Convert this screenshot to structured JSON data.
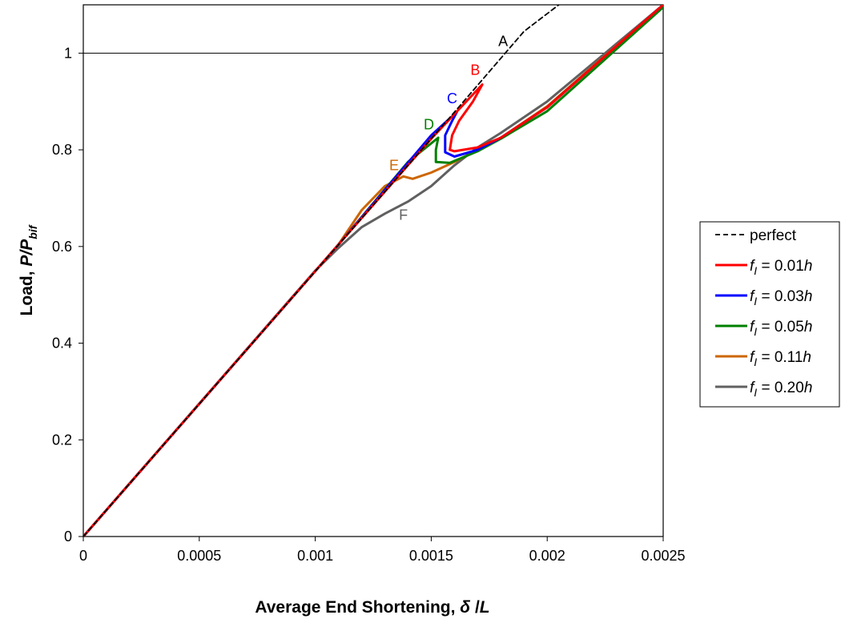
{
  "chart_data": {
    "type": "line",
    "xlabel": {
      "prefix": "Average End Shortening, ",
      "delta": "δ",
      "slash": " /",
      "L": "L"
    },
    "ylabel": {
      "prefix": "Load, ",
      "P": "P",
      "slash": "/",
      "P2": "P",
      "sub": "bif"
    },
    "xlim": [
      0,
      0.0025
    ],
    "ylim": [
      0,
      1.1
    ],
    "x_ticks": [
      "0",
      "0.0005",
      "0.001",
      "0.0015",
      "0.002",
      "0.0025"
    ],
    "x_tick_values": [
      0,
      0.0005,
      0.001,
      0.0015,
      0.002,
      0.0025
    ],
    "y_ticks": [
      "0",
      "0.2",
      "0.4",
      "0.6",
      "0.8",
      "1"
    ],
    "y_tick_values": [
      0,
      0.2,
      0.4,
      0.6,
      0.8,
      1.0
    ],
    "reference_line_y": 1.0,
    "grid": false,
    "legend_position": "right",
    "series": [
      {
        "name": "perfect",
        "legend": {
          "text": "perfect"
        },
        "color": "#000000",
        "dash": true,
        "points": [
          [
            0,
            0
          ],
          [
            0.0016,
            0.878
          ],
          [
            0.0019,
            1.045
          ],
          [
            0.00205,
            1.1
          ]
        ]
      },
      {
        "name": "f_I = 0.01h",
        "legend": {
          "pre": "f",
          "sub": "I",
          "mid": " = 0.01",
          "h": "h"
        },
        "color": "#ff0000",
        "dash": false,
        "points": [
          [
            0,
            0
          ],
          [
            0.0011,
            0.604
          ],
          [
            0.0015,
            0.823
          ],
          [
            0.00172,
            0.935
          ],
          [
            0.00168,
            0.9
          ],
          [
            0.00162,
            0.86
          ],
          [
            0.00159,
            0.83
          ],
          [
            0.00158,
            0.8
          ],
          [
            0.0016,
            0.797
          ],
          [
            0.0017,
            0.805
          ],
          [
            0.0018,
            0.825
          ],
          [
            0.002,
            0.888
          ],
          [
            0.0025,
            1.1
          ]
        ]
      },
      {
        "name": "f_I = 0.03h",
        "legend": {
          "pre": "f",
          "sub": "I",
          "mid": " = 0.03",
          "h": "h"
        },
        "color": "#0000ff",
        "dash": false,
        "points": [
          [
            0,
            0
          ],
          [
            0.0011,
            0.604
          ],
          [
            0.0015,
            0.83
          ],
          [
            0.00161,
            0.878
          ],
          [
            0.00159,
            0.86
          ],
          [
            0.00156,
            0.83
          ],
          [
            0.00156,
            0.795
          ],
          [
            0.0016,
            0.786
          ],
          [
            0.0017,
            0.8
          ],
          [
            0.0018,
            0.825
          ],
          [
            0.002,
            0.888
          ],
          [
            0.0025,
            1.1
          ]
        ]
      },
      {
        "name": "f_I = 0.05h",
        "legend": {
          "pre": "f",
          "sub": "I",
          "mid": " = 0.05",
          "h": "h"
        },
        "color": "#008000",
        "dash": false,
        "points": [
          [
            0,
            0
          ],
          [
            0.0011,
            0.604
          ],
          [
            0.0014,
            0.775
          ],
          [
            0.00153,
            0.825
          ],
          [
            0.00152,
            0.8
          ],
          [
            0.00152,
            0.775
          ],
          [
            0.00158,
            0.773
          ],
          [
            0.0017,
            0.797
          ],
          [
            0.0018,
            0.823
          ],
          [
            0.002,
            0.88
          ],
          [
            0.0025,
            1.095
          ]
        ]
      },
      {
        "name": "f_I = 0.11h",
        "legend": {
          "pre": "f",
          "sub": "I",
          "mid": " = 0.11",
          "h": "h"
        },
        "color": "#cc6600",
        "dash": false,
        "points": [
          [
            0,
            0
          ],
          [
            0.0011,
            0.604
          ],
          [
            0.0012,
            0.675
          ],
          [
            0.0013,
            0.725
          ],
          [
            0.00138,
            0.745
          ],
          [
            0.00142,
            0.74
          ],
          [
            0.0015,
            0.753
          ],
          [
            0.0016,
            0.775
          ],
          [
            0.0018,
            0.825
          ],
          [
            0.002,
            0.89
          ],
          [
            0.0025,
            1.1
          ]
        ]
      },
      {
        "name": "f_I = 0.20h",
        "legend": {
          "pre": "f",
          "sub": "I",
          "mid": " = 0.20",
          "h": "h"
        },
        "color": "#606060",
        "dash": false,
        "points": [
          [
            0,
            0
          ],
          [
            0.001,
            0.55
          ],
          [
            0.0011,
            0.597
          ],
          [
            0.0012,
            0.64
          ],
          [
            0.0013,
            0.668
          ],
          [
            0.0014,
            0.693
          ],
          [
            0.0015,
            0.725
          ],
          [
            0.0016,
            0.768
          ],
          [
            0.0017,
            0.805
          ],
          [
            0.0018,
            0.835
          ],
          [
            0.002,
            0.9
          ],
          [
            0.0025,
            1.1
          ]
        ]
      }
    ],
    "annotations": [
      {
        "text": "A",
        "x": 0.00181,
        "y": 1.015,
        "color": "#000000"
      },
      {
        "text": "B",
        "x": 0.00169,
        "y": 0.955,
        "color": "#ff0000"
      },
      {
        "text": "C",
        "x": 0.00159,
        "y": 0.896,
        "color": "#0000ff"
      },
      {
        "text": "D",
        "x": 0.00149,
        "y": 0.842,
        "color": "#008000"
      },
      {
        "text": "E",
        "x": 0.00134,
        "y": 0.758,
        "color": "#cc6600"
      },
      {
        "text": "F",
        "x": 0.00138,
        "y": 0.655,
        "color": "#606060"
      }
    ]
  }
}
